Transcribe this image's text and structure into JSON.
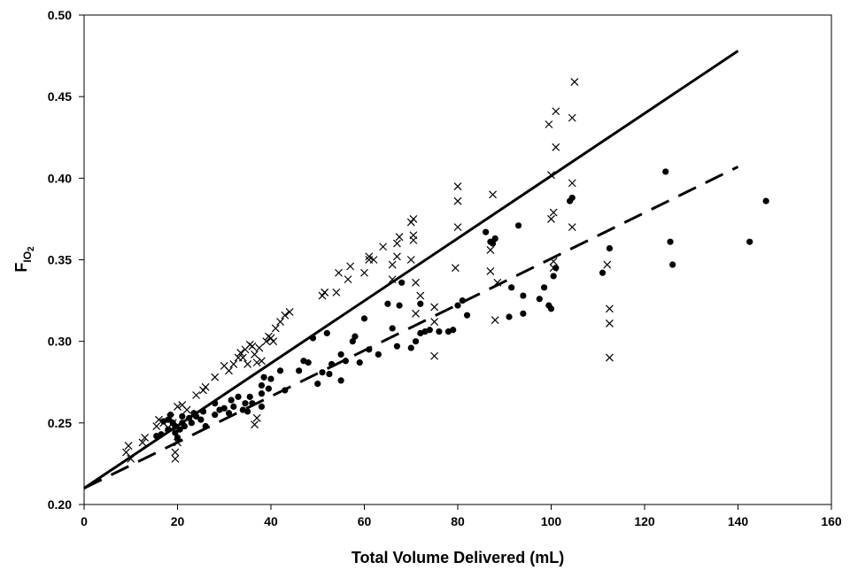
{
  "chart_data": {
    "type": "scatter",
    "xlabel": "Total Volume Delivered (mL)",
    "ylabel": {
      "main": "F",
      "sub": "IO",
      "subsub": "2"
    },
    "xlim": [
      0,
      160
    ],
    "ylim": [
      0.2,
      0.5
    ],
    "x_ticks": [
      0,
      20,
      40,
      60,
      80,
      100,
      120,
      140,
      160
    ],
    "y_ticks": [
      0.2,
      0.25,
      0.3,
      0.35,
      0.4,
      0.45,
      0.5
    ],
    "x_tick_labels": [
      "0",
      "20",
      "40",
      "60",
      "80",
      "100",
      "120",
      "140",
      "160"
    ],
    "y_tick_labels": [
      "0.20",
      "0.25",
      "0.30",
      "0.35",
      "0.40",
      "0.45",
      "0.50"
    ],
    "grid": false,
    "series": [
      {
        "marker": "x",
        "points": [
          [
            9,
            0.232
          ],
          [
            9.5,
            0.236
          ],
          [
            10,
            0.228
          ],
          [
            12.5,
            0.238
          ],
          [
            13,
            0.241
          ],
          [
            15.5,
            0.248
          ],
          [
            16,
            0.252
          ],
          [
            17,
            0.25
          ],
          [
            18,
            0.247
          ],
          [
            18.5,
            0.253
          ],
          [
            19,
            0.25
          ],
          [
            19.5,
            0.232
          ],
          [
            19.5,
            0.228
          ],
          [
            20,
            0.238
          ],
          [
            20,
            0.26
          ],
          [
            21,
            0.261
          ],
          [
            22,
            0.258
          ],
          [
            24,
            0.267
          ],
          [
            25.5,
            0.27
          ],
          [
            26,
            0.272
          ],
          [
            28,
            0.278
          ],
          [
            30,
            0.285
          ],
          [
            31,
            0.282
          ],
          [
            32,
            0.286
          ],
          [
            33,
            0.29
          ],
          [
            33.5,
            0.293
          ],
          [
            34,
            0.29
          ],
          [
            34.5,
            0.295
          ],
          [
            35,
            0.286
          ],
          [
            35.5,
            0.298
          ],
          [
            36,
            0.297
          ],
          [
            36.5,
            0.292
          ],
          [
            37,
            0.287
          ],
          [
            37,
            0.253
          ],
          [
            36.5,
            0.249
          ],
          [
            37.5,
            0.296
          ],
          [
            38,
            0.288
          ],
          [
            39,
            0.3
          ],
          [
            39.5,
            0.303
          ],
          [
            40,
            0.302
          ],
          [
            40.5,
            0.3
          ],
          [
            41,
            0.308
          ],
          [
            42,
            0.312
          ],
          [
            43,
            0.316
          ],
          [
            44,
            0.318
          ],
          [
            51,
            0.328
          ],
          [
            51.5,
            0.33
          ],
          [
            51.5,
            0.33
          ],
          [
            54,
            0.33
          ],
          [
            54.5,
            0.342
          ],
          [
            56.5,
            0.338
          ],
          [
            57,
            0.346
          ],
          [
            60,
            0.342
          ],
          [
            61,
            0.35
          ],
          [
            61,
            0.352
          ],
          [
            62,
            0.35
          ],
          [
            64,
            0.358
          ],
          [
            66,
            0.338
          ],
          [
            66,
            0.347
          ],
          [
            67,
            0.36
          ],
          [
            67.5,
            0.364
          ],
          [
            67,
            0.352
          ],
          [
            70,
            0.35
          ],
          [
            70.5,
            0.362
          ],
          [
            70.5,
            0.365
          ],
          [
            70,
            0.373
          ],
          [
            70.5,
            0.375
          ],
          [
            71,
            0.336
          ],
          [
            71,
            0.317
          ],
          [
            72,
            0.328
          ],
          [
            75,
            0.291
          ],
          [
            75,
            0.321
          ],
          [
            75,
            0.312
          ],
          [
            79.5,
            0.345
          ],
          [
            80,
            0.37
          ],
          [
            80,
            0.386
          ],
          [
            80,
            0.395
          ],
          [
            87,
            0.343
          ],
          [
            87,
            0.356
          ],
          [
            87.5,
            0.39
          ],
          [
            88,
            0.313
          ],
          [
            88.5,
            0.336
          ],
          [
            99.5,
            0.433
          ],
          [
            100,
            0.375
          ],
          [
            100,
            0.402
          ],
          [
            100.5,
            0.379
          ],
          [
            101,
            0.419
          ],
          [
            101,
            0.441
          ],
          [
            100.5,
            0.349
          ],
          [
            100.5,
            0.345
          ],
          [
            104.5,
            0.437
          ],
          [
            104.5,
            0.397
          ],
          [
            104.5,
            0.37
          ],
          [
            105,
            0.459
          ],
          [
            112,
            0.347
          ],
          [
            112.5,
            0.32
          ],
          [
            112.5,
            0.311
          ],
          [
            112.5,
            0.29
          ]
        ]
      },
      {
        "marker": "dot",
        "points": [
          [
            15.5,
            0.242
          ],
          [
            16.5,
            0.243
          ],
          [
            17,
            0.251
          ],
          [
            18,
            0.246
          ],
          [
            18,
            0.252
          ],
          [
            18.5,
            0.255
          ],
          [
            19,
            0.25
          ],
          [
            19.5,
            0.244
          ],
          [
            19.5,
            0.248
          ],
          [
            20,
            0.241
          ],
          [
            20.5,
            0.246
          ],
          [
            21,
            0.25
          ],
          [
            21,
            0.254
          ],
          [
            21.5,
            0.248
          ],
          [
            22.5,
            0.253
          ],
          [
            23,
            0.25
          ],
          [
            23.5,
            0.256
          ],
          [
            24,
            0.254
          ],
          [
            25,
            0.252
          ],
          [
            25.5,
            0.257
          ],
          [
            26,
            0.248
          ],
          [
            28,
            0.255
          ],
          [
            28,
            0.262
          ],
          [
            29,
            0.258
          ],
          [
            30,
            0.259
          ],
          [
            31,
            0.256
          ],
          [
            31.5,
            0.264
          ],
          [
            32,
            0.26
          ],
          [
            33,
            0.266
          ],
          [
            34,
            0.258
          ],
          [
            34.5,
            0.262
          ],
          [
            35,
            0.257
          ],
          [
            35.5,
            0.266
          ],
          [
            36,
            0.262
          ],
          [
            38,
            0.26
          ],
          [
            38,
            0.268
          ],
          [
            38,
            0.273
          ],
          [
            38.5,
            0.278
          ],
          [
            39.5,
            0.271
          ],
          [
            40,
            0.277
          ],
          [
            42,
            0.282
          ],
          [
            43,
            0.27
          ],
          [
            46,
            0.282
          ],
          [
            47,
            0.288
          ],
          [
            48,
            0.287
          ],
          [
            49,
            0.302
          ],
          [
            50,
            0.274
          ],
          [
            51,
            0.281
          ],
          [
            52,
            0.305
          ],
          [
            52.5,
            0.28
          ],
          [
            53,
            0.286
          ],
          [
            55,
            0.276
          ],
          [
            55,
            0.292
          ],
          [
            56,
            0.288
          ],
          [
            57.5,
            0.3
          ],
          [
            58,
            0.303
          ],
          [
            59,
            0.287
          ],
          [
            60,
            0.314
          ],
          [
            61,
            0.295
          ],
          [
            63,
            0.292
          ],
          [
            65,
            0.323
          ],
          [
            66,
            0.308
          ],
          [
            67,
            0.297
          ],
          [
            67.5,
            0.322
          ],
          [
            68,
            0.336
          ],
          [
            70,
            0.296
          ],
          [
            71,
            0.3
          ],
          [
            72,
            0.323
          ],
          [
            72,
            0.305
          ],
          [
            73,
            0.306
          ],
          [
            74,
            0.307
          ],
          [
            76,
            0.306
          ],
          [
            78,
            0.306
          ],
          [
            79,
            0.307
          ],
          [
            80,
            0.322
          ],
          [
            81,
            0.325
          ],
          [
            82,
            0.316
          ],
          [
            86,
            0.367
          ],
          [
            87,
            0.361
          ],
          [
            87.5,
            0.36
          ],
          [
            88,
            0.363
          ],
          [
            91,
            0.315
          ],
          [
            91.5,
            0.333
          ],
          [
            93,
            0.371
          ],
          [
            94,
            0.317
          ],
          [
            94,
            0.328
          ],
          [
            97.5,
            0.326
          ],
          [
            98.5,
            0.333
          ],
          [
            99.5,
            0.322
          ],
          [
            100,
            0.32
          ],
          [
            100.5,
            0.34
          ],
          [
            101,
            0.345
          ],
          [
            104,
            0.386
          ],
          [
            104.5,
            0.388
          ],
          [
            111,
            0.342
          ],
          [
            112.5,
            0.357
          ],
          [
            124.5,
            0.404
          ],
          [
            125.5,
            0.361
          ],
          [
            126,
            0.347
          ],
          [
            142.5,
            0.361
          ],
          [
            146,
            0.386
          ]
        ]
      }
    ],
    "lines": [
      {
        "style": "solid",
        "from": [
          0,
          0.21
        ],
        "to": [
          140,
          0.478
        ]
      },
      {
        "style": "dashed",
        "from": [
          0,
          0.21
        ],
        "to": [
          140,
          0.407
        ]
      }
    ]
  }
}
